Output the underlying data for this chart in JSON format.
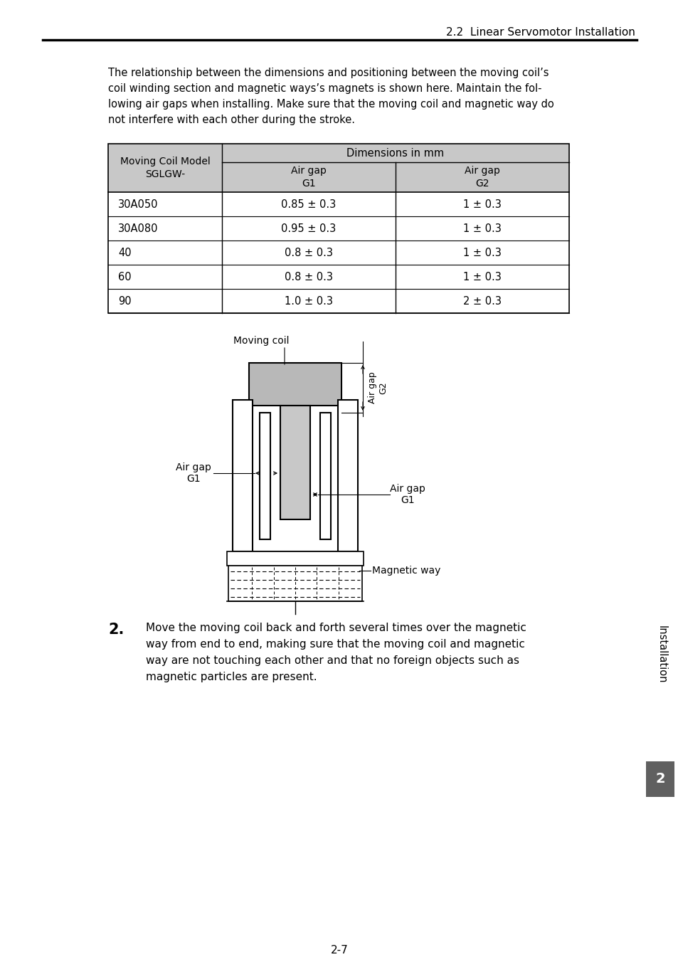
{
  "page_header": "2.2  Linear Servomotor Installation",
  "page_footer": "2-7",
  "intro_lines": [
    "The relationship between the dimensions and positioning between the moving coil’s",
    "coil winding section and magnetic ways’s magnets is shown here. Maintain the fol-",
    "lowing air gaps when installing. Make sure that the moving coil and magnetic way do",
    "not interfere with each other during the stroke."
  ],
  "table_header_dim": "Dimensions in mm",
  "table_header_col1": "Moving Coil Model\nSGLGW-",
  "table_header_g1": "Air gap\nG1",
  "table_header_g2": "Air gap\nG2",
  "table_rows": [
    [
      "30A050",
      "0.85 ± 0.3",
      "1 ± 0.3"
    ],
    [
      "30A080",
      "0.95 ± 0.3",
      "1 ± 0.3"
    ],
    [
      "40",
      "0.8 ± 0.3",
      "1 ± 0.3"
    ],
    [
      "60",
      "0.8 ± 0.3",
      "1 ± 0.3"
    ],
    [
      "90",
      "1.0 ± 0.3",
      "2 ± 0.3"
    ]
  ],
  "step2_lines": [
    "Move the moving coil back and forth several times over the magnetic",
    "way from end to end, making sure that the moving coil and magnetic",
    "way are not touching each other and that no foreign objects such as",
    "magnetic particles are present."
  ],
  "sidebar_text": "Installation",
  "sidebar_num": "2",
  "bg_color": "#ffffff",
  "header_bg": "#c8c8c8",
  "sidebar_bg": "#606060"
}
